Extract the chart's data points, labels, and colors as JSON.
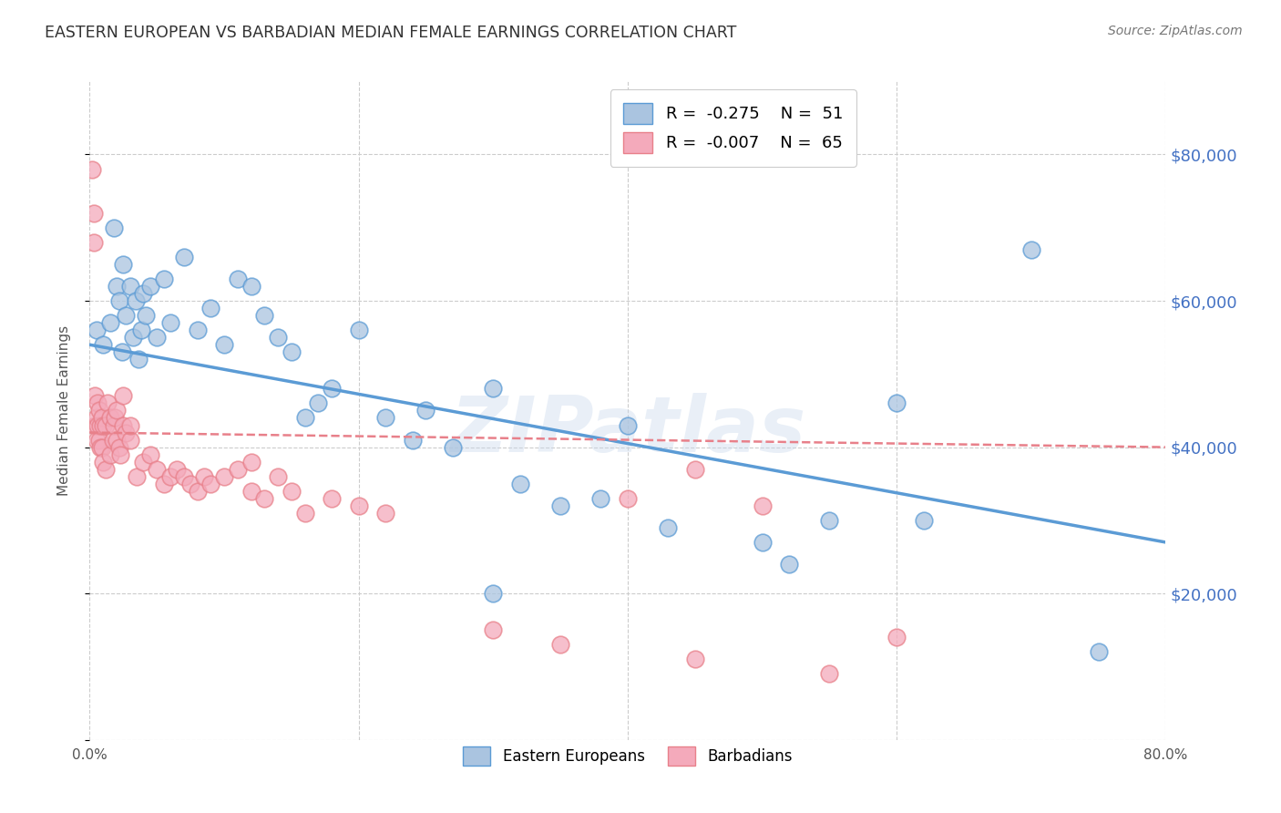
{
  "title": "EASTERN EUROPEAN VS BARBADIAN MEDIAN FEMALE EARNINGS CORRELATION CHART",
  "source": "Source: ZipAtlas.com",
  "ylabel": "Median Female Earnings",
  "watermark": "ZIPatlas",
  "xlim": [
    0.0,
    0.8
  ],
  "ylim": [
    0,
    90000
  ],
  "yticks": [
    0,
    20000,
    40000,
    60000,
    80000
  ],
  "ytick_labels": [
    "",
    "$20,000",
    "$40,000",
    "$60,000",
    "$80,000"
  ],
  "xtick_labels": [
    "0.0%",
    "",
    "",
    "",
    "80.0%"
  ],
  "xtick_positions": [
    0.0,
    0.2,
    0.4,
    0.6,
    0.8
  ],
  "legend_entries": [
    {
      "label": "Eastern Europeans",
      "R": "-0.275",
      "N": "51"
    },
    {
      "label": "Barbadians",
      "R": "-0.007",
      "N": "65"
    }
  ],
  "blue_scatter_x": [
    0.005,
    0.01,
    0.015,
    0.018,
    0.02,
    0.022,
    0.024,
    0.025,
    0.027,
    0.03,
    0.032,
    0.034,
    0.036,
    0.038,
    0.04,
    0.042,
    0.045,
    0.05,
    0.055,
    0.06,
    0.07,
    0.08,
    0.09,
    0.1,
    0.11,
    0.12,
    0.13,
    0.14,
    0.15,
    0.16,
    0.17,
    0.18,
    0.2,
    0.22,
    0.24,
    0.25,
    0.27,
    0.3,
    0.32,
    0.35,
    0.38,
    0.4,
    0.43,
    0.5,
    0.52,
    0.55,
    0.6,
    0.62,
    0.7,
    0.75,
    0.3
  ],
  "blue_scatter_y": [
    56000,
    54000,
    57000,
    70000,
    62000,
    60000,
    53000,
    65000,
    58000,
    62000,
    55000,
    60000,
    52000,
    56000,
    61000,
    58000,
    62000,
    55000,
    63000,
    57000,
    66000,
    56000,
    59000,
    54000,
    63000,
    62000,
    58000,
    55000,
    53000,
    44000,
    46000,
    48000,
    56000,
    44000,
    41000,
    45000,
    40000,
    48000,
    35000,
    32000,
    33000,
    43000,
    29000,
    27000,
    24000,
    30000,
    46000,
    30000,
    67000,
    12000,
    20000
  ],
  "pink_scatter_x": [
    0.002,
    0.003,
    0.003,
    0.004,
    0.004,
    0.005,
    0.005,
    0.006,
    0.006,
    0.007,
    0.007,
    0.008,
    0.008,
    0.009,
    0.009,
    0.01,
    0.01,
    0.012,
    0.012,
    0.013,
    0.015,
    0.015,
    0.017,
    0.018,
    0.019,
    0.02,
    0.02,
    0.022,
    0.023,
    0.025,
    0.025,
    0.027,
    0.03,
    0.035,
    0.04,
    0.045,
    0.05,
    0.055,
    0.06,
    0.065,
    0.07,
    0.075,
    0.08,
    0.085,
    0.09,
    0.1,
    0.11,
    0.12,
    0.12,
    0.13,
    0.14,
    0.15,
    0.16,
    0.18,
    0.2,
    0.22,
    0.3,
    0.35,
    0.4,
    0.45,
    0.45,
    0.5,
    0.55,
    0.6,
    0.03
  ],
  "pink_scatter_y": [
    78000,
    72000,
    68000,
    47000,
    43000,
    44000,
    41000,
    46000,
    43000,
    45000,
    41000,
    43000,
    40000,
    44000,
    40000,
    43000,
    38000,
    43000,
    37000,
    46000,
    44000,
    39000,
    41000,
    43000,
    44000,
    45000,
    41000,
    40000,
    39000,
    43000,
    47000,
    42000,
    41000,
    36000,
    38000,
    39000,
    37000,
    35000,
    36000,
    37000,
    36000,
    35000,
    34000,
    36000,
    35000,
    36000,
    37000,
    34000,
    38000,
    33000,
    36000,
    34000,
    31000,
    33000,
    32000,
    31000,
    15000,
    13000,
    33000,
    37000,
    11000,
    32000,
    9000,
    14000,
    43000
  ],
  "blue_line_x": [
    0.0,
    0.8
  ],
  "blue_line_y": [
    54000,
    27000
  ],
  "pink_line_x": [
    0.0,
    0.8
  ],
  "pink_line_y": [
    42000,
    40000
  ],
  "background_color": "#ffffff",
  "grid_color": "#cccccc",
  "title_color": "#333333",
  "ylabel_color": "#555555",
  "ytick_color": "#4472c4",
  "source_color": "#777777",
  "blue_color": "#5b9bd5",
  "pink_color": "#e8808a",
  "blue_fill": "#aac4e0",
  "pink_fill": "#f4aabb"
}
